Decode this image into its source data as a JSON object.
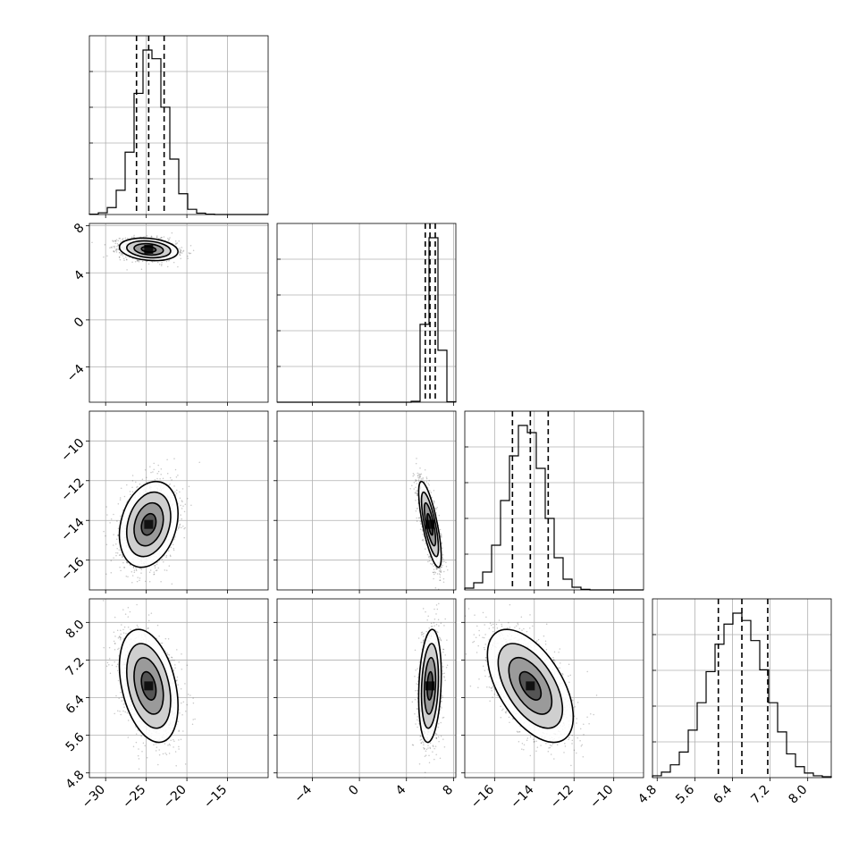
{
  "chart_data": {
    "type": "corner",
    "grid": true,
    "parameters": [
      {
        "index": 0,
        "range": [
          -32,
          -10
        ],
        "ticks": [
          -30,
          -25,
          -20,
          -15
        ],
        "tick_labels": [
          "−30",
          "−25",
          "−20",
          "−15"
        ],
        "mean": -24.7,
        "sd": 1.5,
        "quantiles": [
          -26.2,
          -24.7,
          -22.8
        ]
      },
      {
        "index": 1,
        "range": [
          -7,
          8.2
        ],
        "ticks": [
          -4,
          0,
          4,
          8
        ],
        "tick_labels": [
          "−4",
          "0",
          "4",
          "8"
        ],
        "mean": 6.0,
        "sd": 0.4,
        "quantiles": [
          5.6,
          6.0,
          6.45
        ]
      },
      {
        "index": 2,
        "range": [
          -17.5,
          -8.5
        ],
        "ticks": [
          -16,
          -14,
          -12,
          -10
        ],
        "tick_labels": [
          "−16",
          "−14",
          "−12",
          "−10"
        ],
        "mean": -14.2,
        "sd": 0.9,
        "quantiles": [
          -15.1,
          -14.2,
          -13.3
        ]
      },
      {
        "index": 3,
        "range": [
          4.7,
          8.5
        ],
        "ticks": [
          4.8,
          5.6,
          6.4,
          7.2,
          8.0
        ],
        "tick_labels": [
          "4.8",
          "5.6",
          "6.4",
          "7.2",
          "8.0"
        ],
        "mean": 6.65,
        "sd": 0.5,
        "quantiles": [
          6.1,
          6.6,
          7.15
        ]
      }
    ],
    "correlations": [
      {
        "pair": [
          1,
          0
        ],
        "rho": -0.2
      },
      {
        "pair": [
          2,
          0
        ],
        "rho": 0.25
      },
      {
        "pair": [
          2,
          1
        ],
        "rho": -0.75
      },
      {
        "pair": [
          3,
          0
        ],
        "rho": -0.35
      },
      {
        "pair": [
          3,
          1
        ],
        "rho": 0.2
      },
      {
        "pair": [
          3,
          2
        ],
        "rho": -0.55
      }
    ],
    "histograms": [
      {
        "param": 0,
        "bin_edges": [
          -32,
          -30.9,
          -29.8,
          -28.7,
          -27.6,
          -26.5,
          -25.4,
          -24.3,
          -23.2,
          -22.1,
          -21.0,
          -19.9,
          -18.8,
          -17.7,
          -16.6,
          -15.5,
          -14.4,
          -13.3,
          -12.2,
          -11.1,
          -10
        ],
        "counts": [
          0.2,
          1.0,
          4.0,
          14.0,
          36.0,
          70.0,
          95.0,
          90.0,
          62.0,
          32.0,
          12.0,
          3.0,
          0.8,
          0.2,
          0,
          0,
          0,
          0,
          0,
          0
        ]
      },
      {
        "param": 1,
        "bin_edges": [
          -7,
          -6.24,
          -5.48,
          -4.72,
          -3.96,
          -3.2,
          -2.44,
          -1.68,
          -0.92,
          -0.16,
          0.6,
          1.36,
          2.12,
          2.88,
          3.64,
          4.4,
          5.16,
          5.92,
          6.68,
          7.44,
          8.2
        ],
        "counts": [
          0,
          0,
          0,
          0,
          0,
          0,
          0,
          0,
          0,
          0,
          0,
          0,
          0,
          0,
          0,
          0.5,
          45.0,
          95.0,
          30.0,
          0.3
        ]
      },
      {
        "param": 2,
        "bin_edges": [
          -17.5,
          -17.05,
          -16.6,
          -16.15,
          -15.7,
          -15.25,
          -14.8,
          -14.35,
          -13.9,
          -13.45,
          -13.0,
          -12.55,
          -12.1,
          -11.65,
          -11.2,
          -10.75,
          -10.3,
          -9.85,
          -9.4,
          -8.95,
          -8.5
        ],
        "counts": [
          1.0,
          4.0,
          10.0,
          25.0,
          50.0,
          75.0,
          92.0,
          88.0,
          68.0,
          40.0,
          18.0,
          6.0,
          1.5,
          0.3,
          0,
          0,
          0,
          0,
          0,
          0
        ]
      },
      {
        "param": 3,
        "bin_edges": [
          4.7,
          4.89,
          5.08,
          5.27,
          5.46,
          5.65,
          5.84,
          6.03,
          6.22,
          6.41,
          6.6,
          6.79,
          6.98,
          7.17,
          7.36,
          7.55,
          7.74,
          7.93,
          8.12,
          8.31,
          8.5
        ],
        "counts": [
          1.0,
          3.0,
          7.0,
          14.0,
          26.0,
          41.0,
          58.0,
          73.0,
          84.0,
          90.0,
          86.0,
          75.0,
          59.0,
          41.0,
          25.0,
          13.0,
          6.0,
          2.5,
          1.0,
          0.5
        ]
      }
    ]
  }
}
